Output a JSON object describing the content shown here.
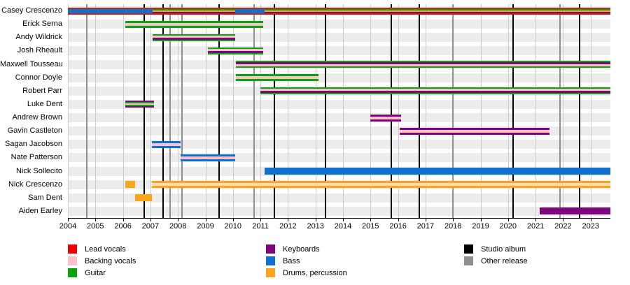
{
  "chart_data": {
    "type": "timeline",
    "title": "",
    "axis": {
      "start": 2004,
      "end": 2023.72,
      "years": [
        2004,
        2005,
        2006,
        2007,
        2008,
        2009,
        2010,
        2011,
        2012,
        2013,
        2014,
        2015,
        2016,
        2017,
        2018,
        2019,
        2020,
        2021,
        2022,
        2023
      ]
    },
    "events": {
      "studio_album": {
        "label": "Studio album",
        "color": "album",
        "years": [
          2006.78,
          2007.46,
          2009.5,
          2011.5,
          2013.36,
          2015.75,
          2016.78,
          2020.18,
          2022.6
        ]
      },
      "other_release": {
        "label": "Other release",
        "color": "other",
        "years": [
          2004.68,
          2007.72,
          2008.15,
          2010.78,
          2018.0,
          2021.9
        ]
      }
    },
    "members": [
      {
        "name": "Casey Crescenzo",
        "roles": [
          "Lead vocals",
          "Guitar",
          "Drums, percussion",
          "Keyboards",
          "Bass"
        ],
        "bars": [
          {
            "from": 2004.0,
            "to": 2023.72,
            "stripes": [
              [
                "lead",
                2
              ],
              [
                "guitar",
                2
              ],
              [
                "drums",
                2
              ],
              [
                "keys",
                2
              ],
              [
                "lead",
                2
              ]
            ]
          }
        ],
        "overlays": [
          {
            "color": "bass",
            "from": 2004.0,
            "to": 2007.08
          },
          {
            "color": "bass",
            "from": 2010.08,
            "to": 2011.15
          }
        ]
      },
      {
        "name": "Erick Serna",
        "roles": [
          "Guitar",
          "Backing vocals"
        ],
        "bars": [
          {
            "from": 2006.08,
            "to": 2011.1,
            "stripes": [
              [
                "guitar",
                3
              ],
              [
                "backing",
                4
              ],
              [
                "guitar",
                3
              ]
            ]
          }
        ]
      },
      {
        "name": "Andy Wildrick",
        "roles": [
          "Guitar",
          "Backing vocals",
          "Keyboards"
        ],
        "bars": [
          {
            "from": 2007.08,
            "to": 2010.08,
            "stripes": [
              [
                "guitar",
                2
              ],
              [
                "backing",
                3
              ],
              [
                "keys",
                3
              ],
              [
                "guitar",
                2
              ]
            ]
          }
        ]
      },
      {
        "name": "Josh Rheault",
        "roles": [
          "Guitar",
          "Backing vocals",
          "Keyboards"
        ],
        "bars": [
          {
            "from": 2009.1,
            "to": 2011.1,
            "stripes": [
              [
                "guitar",
                2
              ],
              [
                "backing",
                3
              ],
              [
                "keys",
                3
              ],
              [
                "guitar",
                2
              ]
            ]
          }
        ]
      },
      {
        "name": "Maxwell Tousseau",
        "roles": [
          "Guitar",
          "Keyboards",
          "Backing vocals"
        ],
        "bars": [
          {
            "from": 2010.1,
            "to": 2023.72,
            "stripes": [
              [
                "guitar",
                2
              ],
              [
                "keys",
                3
              ],
              [
                "backing",
                3
              ],
              [
                "guitar",
                2
              ]
            ]
          }
        ]
      },
      {
        "name": "Connor Doyle",
        "roles": [
          "Guitar",
          "Backing vocals"
        ],
        "bars": [
          {
            "from": 2010.1,
            "to": 2013.1,
            "stripes": [
              [
                "guitar",
                3
              ],
              [
                "backing",
                4
              ],
              [
                "guitar",
                3
              ]
            ]
          }
        ]
      },
      {
        "name": "Robert Parr",
        "roles": [
          "Guitar",
          "Backing vocals",
          "Keyboards"
        ],
        "bars": [
          {
            "from": 2011.0,
            "to": 2023.72,
            "stripes": [
              [
                "guitar",
                2
              ],
              [
                "backing",
                3
              ],
              [
                "keys",
                3
              ],
              [
                "guitar",
                2
              ]
            ]
          }
        ]
      },
      {
        "name": "Luke Dent",
        "roles": [
          "Keyboards",
          "Guitar",
          "Backing vocals"
        ],
        "bars": [
          {
            "from": 2006.08,
            "to": 2007.12,
            "stripes": [
              [
                "keys",
                2
              ],
              [
                "guitar",
                2
              ],
              [
                "backing",
                2
              ],
              [
                "guitar",
                2
              ],
              [
                "keys",
                2
              ]
            ]
          }
        ]
      },
      {
        "name": "Andrew Brown",
        "roles": [
          "Keyboards",
          "Backing vocals"
        ],
        "bars": [
          {
            "from": 2015.0,
            "to": 2016.1,
            "stripes": [
              [
                "keys",
                3
              ],
              [
                "backing",
                4
              ],
              [
                "keys",
                3
              ]
            ]
          }
        ]
      },
      {
        "name": "Gavin Castleton",
        "roles": [
          "Keyboards",
          "Backing vocals"
        ],
        "bars": [
          {
            "from": 2016.05,
            "to": 2021.5,
            "stripes": [
              [
                "keys",
                3
              ],
              [
                "backing",
                4
              ],
              [
                "keys",
                3
              ]
            ]
          }
        ]
      },
      {
        "name": "Sagan Jacobson",
        "roles": [
          "Bass",
          "Backing vocals"
        ],
        "bars": [
          {
            "from": 2007.05,
            "to": 2008.1,
            "stripes": [
              [
                "bass",
                3
              ],
              [
                "backing",
                4
              ],
              [
                "bass",
                3
              ]
            ]
          }
        ]
      },
      {
        "name": "Nate Patterson",
        "roles": [
          "Bass",
          "Backing vocals"
        ],
        "bars": [
          {
            "from": 2008.1,
            "to": 2010.08,
            "stripes": [
              [
                "bass",
                3
              ],
              [
                "backing",
                4
              ],
              [
                "bass",
                3
              ]
            ]
          }
        ]
      },
      {
        "name": "Nick Sollecito",
        "roles": [
          "Bass"
        ],
        "bars": [
          {
            "from": 2011.15,
            "to": 2023.72,
            "stripes": [
              [
                "bass",
                10
              ]
            ]
          }
        ]
      },
      {
        "name": "Nick Crescenzo",
        "roles": [
          "Drums, percussion",
          "Backing vocals"
        ],
        "bars": [
          {
            "from": 2006.08,
            "to": 2006.45,
            "stripes": [
              [
                "drums",
                10
              ]
            ]
          },
          {
            "from": 2007.05,
            "to": 2023.72,
            "stripes": [
              [
                "drums",
                3
              ],
              [
                "backing_drums",
                4
              ],
              [
                "drums",
                3
              ]
            ]
          }
        ]
      },
      {
        "name": "Sam Dent",
        "roles": [
          "Drums, percussion"
        ],
        "bars": [
          {
            "from": 2006.45,
            "to": 2007.05,
            "stripes": [
              [
                "drums",
                10
              ]
            ]
          }
        ]
      },
      {
        "name": "Aiden Earley",
        "roles": [
          "Keyboards"
        ],
        "bars": [
          {
            "from": 2021.15,
            "to": 2023.72,
            "stripes": [
              [
                "keys",
                10
              ]
            ]
          }
        ]
      }
    ]
  },
  "legend": {
    "columns": [
      [
        {
          "label": "Lead vocals",
          "color": "legend_lead"
        },
        {
          "label": "Backing vocals",
          "color": "backing"
        },
        {
          "label": "Guitar",
          "color": "guitar"
        }
      ],
      [
        {
          "label": "Keyboards",
          "color": "keys"
        },
        {
          "label": "Bass",
          "color": "bass"
        },
        {
          "label": "Drums, percussion",
          "color": "drums"
        }
      ],
      [
        {
          "label": "Studio album",
          "color": "album"
        },
        {
          "label": "Other release",
          "color": "other"
        }
      ]
    ]
  },
  "colors": {
    "lead": "#C52314",
    "legend_lead": "#EE0000",
    "backing": "#FFC0CB",
    "guitar": "#0CA40C",
    "keys": "#7D067D",
    "bass": "#1070CE",
    "drums": "#FAA51E",
    "backing_drums": "#FFDCB0",
    "album": "#000000",
    "other": "#8F8F8F",
    "grid": "#CBCBCB",
    "band": "#ECECEC"
  }
}
